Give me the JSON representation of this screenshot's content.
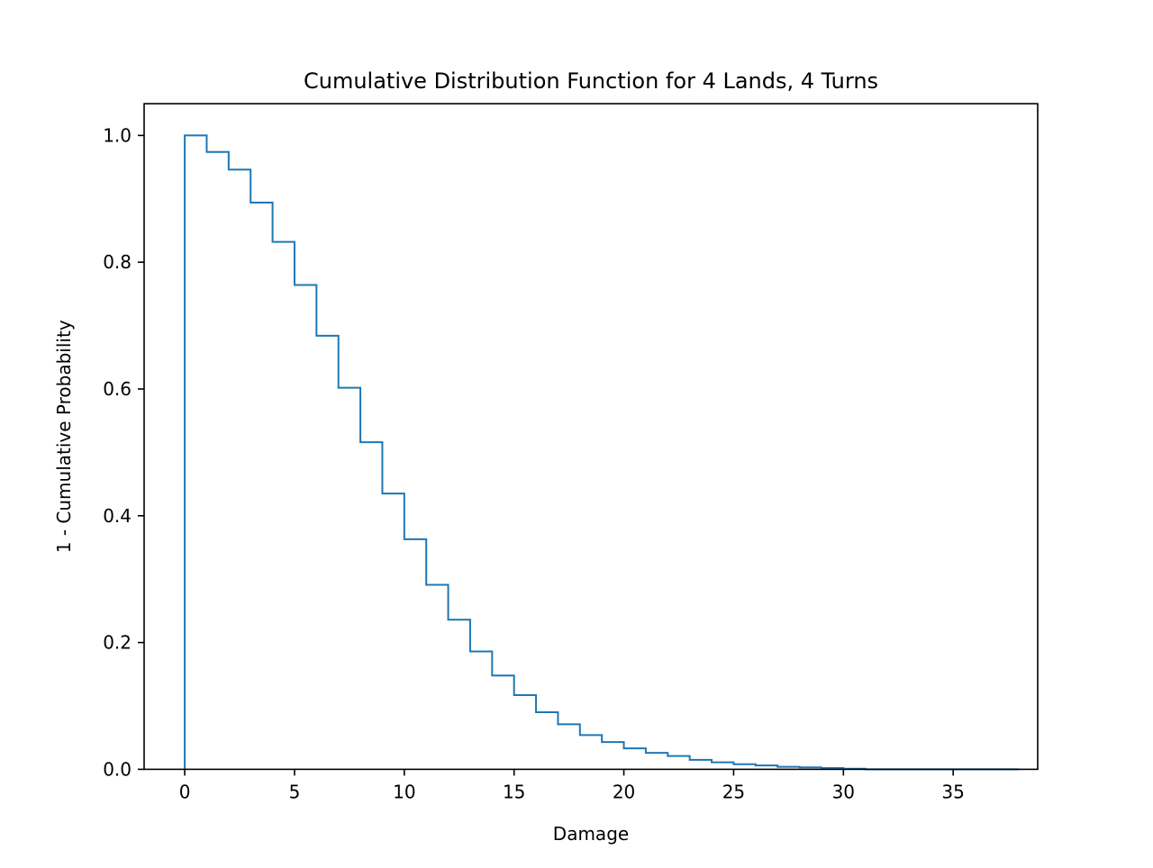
{
  "chart_data": {
    "type": "line",
    "style": "step",
    "title": "Cumulative Distribution Function for 4 Lands, 4 Turns",
    "xlabel": "Damage",
    "ylabel": "1 - Cumulative Probability",
    "xlim": [
      -1.85,
      38.85
    ],
    "ylim": [
      0,
      1.05
    ],
    "xticks": [
      0,
      5,
      10,
      15,
      20,
      25,
      30,
      35
    ],
    "xtick_labels": [
      "0",
      "5",
      "10",
      "15",
      "20",
      "25",
      "30",
      "35"
    ],
    "yticks": [
      0,
      0.2,
      0.4,
      0.6,
      0.8,
      1.0
    ],
    "ytick_labels": [
      "0.0",
      "0.2",
      "0.4",
      "0.6",
      "0.8",
      "1.0"
    ],
    "grid": false,
    "legend": false,
    "series": [
      {
        "color": "#1f77b4",
        "x": [
          0,
          1,
          2,
          3,
          4,
          5,
          6,
          7,
          8,
          9,
          10,
          11,
          12,
          13,
          14,
          15,
          16,
          17,
          18,
          19,
          20,
          21,
          22,
          23,
          24,
          25,
          26,
          27,
          28,
          29,
          30,
          31,
          32,
          33,
          34,
          35,
          36,
          37
        ],
        "y": [
          1.0,
          0.974,
          0.946,
          0.894,
          0.832,
          0.764,
          0.684,
          0.602,
          0.516,
          0.435,
          0.363,
          0.291,
          0.236,
          0.186,
          0.148,
          0.117,
          0.09,
          0.071,
          0.054,
          0.043,
          0.033,
          0.026,
          0.021,
          0.015,
          0.011,
          0.008,
          0.006,
          0.004,
          0.003,
          0.002,
          0.001,
          0.0,
          0.0,
          0.0,
          0.0,
          0.0,
          0.0,
          0.0
        ]
      }
    ]
  }
}
